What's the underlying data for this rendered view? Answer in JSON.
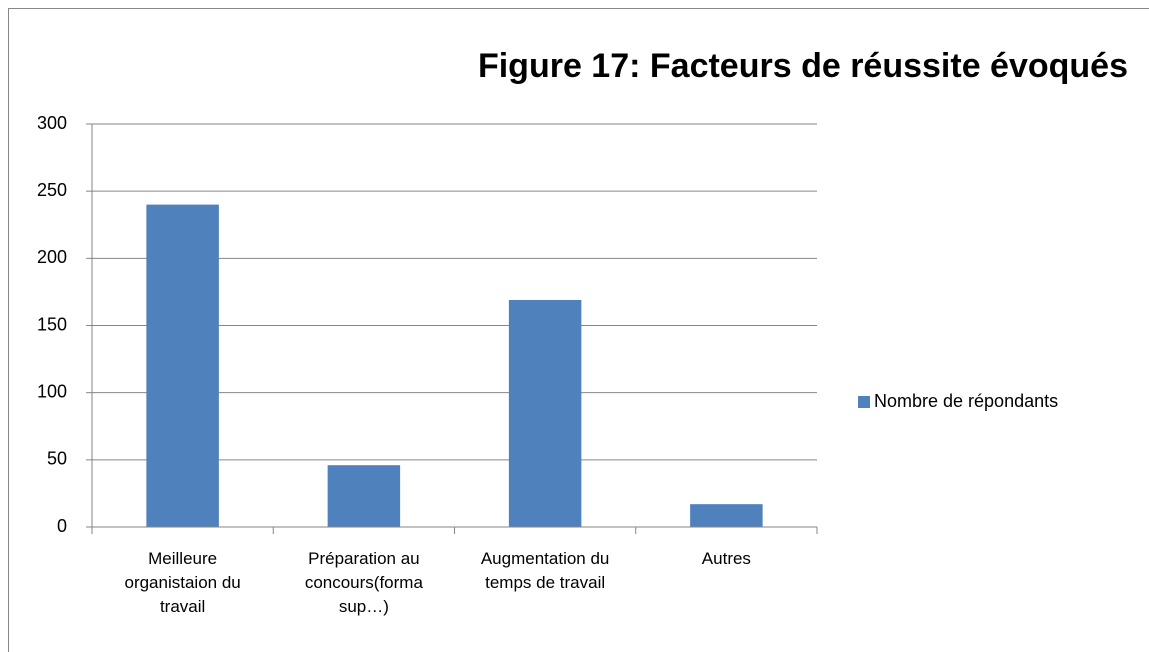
{
  "chart_data": {
    "type": "bar",
    "title": "Figure 17: Facteurs de réussite évoqués",
    "categories": [
      "Meilleure organistaion du travail",
      "Préparation au concours(forma sup…)",
      "Augmentation du temps de travail",
      "Autres"
    ],
    "series": [
      {
        "name": "Nombre de répondants",
        "color": "#4f81bd",
        "values": [
          240,
          46,
          169,
          17
        ]
      }
    ],
    "ylim": [
      0,
      300
    ],
    "yticks": [
      0,
      50,
      100,
      150,
      200,
      250,
      300
    ],
    "grid": true,
    "legend": "right"
  }
}
